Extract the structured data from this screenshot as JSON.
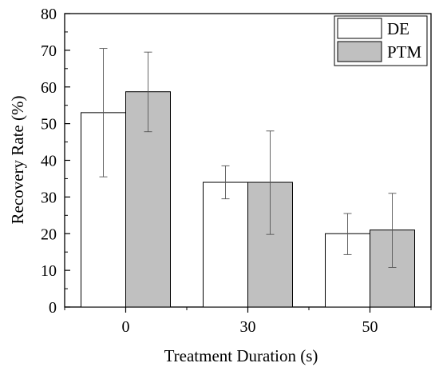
{
  "chart_data": {
    "type": "bar",
    "title": "",
    "xlabel": "Treatment Duration (s)",
    "ylabel": "Recovery Rate (%)",
    "categories": [
      "0",
      "30",
      "50"
    ],
    "ylim": [
      0,
      80
    ],
    "yticks": [
      0,
      10,
      20,
      30,
      40,
      50,
      60,
      70,
      80
    ],
    "grid": false,
    "legend_position": "top-right",
    "series": [
      {
        "name": "DE",
        "color": "#ffffff",
        "values": [
          53,
          34,
          20
        ],
        "error_low": [
          35.5,
          29.5,
          14.3
        ],
        "error_high": [
          70.5,
          38.5,
          25.5
        ]
      },
      {
        "name": "PTM",
        "color": "#c0c0c0",
        "values": [
          58.7,
          34,
          21
        ],
        "error_low": [
          47.8,
          19.8,
          10.8
        ],
        "error_high": [
          69.5,
          48,
          31
        ]
      }
    ]
  }
}
